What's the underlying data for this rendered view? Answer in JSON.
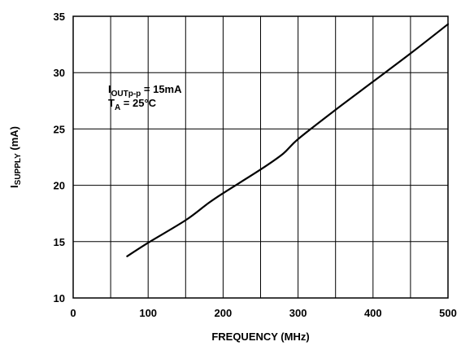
{
  "chart_data": {
    "type": "line",
    "title": "",
    "xlabel": "FREQUENCY (MHz)",
    "ylabel": {
      "main": "I",
      "sub": "SUPPLY",
      "rest": " (mA)"
    },
    "xlim": [
      0,
      500
    ],
    "ylim": [
      10,
      35
    ],
    "xticks": [
      "0",
      "100",
      "200",
      "300",
      "400",
      "500"
    ],
    "xtick_values": [
      0,
      100,
      200,
      300,
      400,
      500
    ],
    "yticks": [
      "10",
      "15",
      "20",
      "25",
      "30",
      "35"
    ],
    "ytick_values": [
      10,
      15,
      20,
      25,
      30,
      35
    ],
    "x_grid_step": 50,
    "y_grid_step": 5,
    "grid": true,
    "legend": "none",
    "line_color": "#000000",
    "annotations": [
      {
        "main": "I",
        "sub": "OUTp-p",
        "rest": " = 15mA"
      },
      {
        "main": "T",
        "sub": "A",
        "rest": " = 25°C"
      }
    ],
    "series": [
      {
        "x": [
          72,
          100,
          150,
          180,
          200,
          250,
          280,
          300,
          350,
          400,
          450,
          500
        ],
        "y": [
          13.7,
          14.9,
          16.9,
          18.4,
          19.3,
          21.4,
          22.8,
          24.1,
          26.7,
          29.2,
          31.7,
          34.3
        ]
      }
    ]
  }
}
